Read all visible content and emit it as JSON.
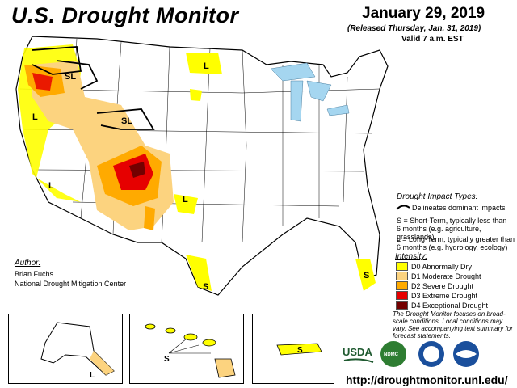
{
  "header": {
    "title": "U.S. Drought Monitor",
    "date": "January 29, 2019",
    "released": "(Released Thursday, Jan. 31, 2019)",
    "valid": "Valid 7 a.m. EST"
  },
  "impact_legend": {
    "title": "Drought Impact Types:",
    "delineates": "Delineates dominant impacts",
    "short_term": "S = Short-Term, typically less than",
    "short_term_2": "6 months (e.g. agriculture, grasslands)",
    "long_term": "L = Long-Term, typically greater than",
    "long_term_2": "6 months (e.g. hydrology, ecology)"
  },
  "intensity_legend": {
    "title": "Intensity:",
    "items": [
      {
        "label": "D0 Abnormally Dry",
        "color": "#ffff00"
      },
      {
        "label": "D1 Moderate Drought",
        "color": "#fcd37f"
      },
      {
        "label": "D2 Severe Drought",
        "color": "#ffaa00"
      },
      {
        "label": "D3 Extreme Drought",
        "color": "#e60000"
      },
      {
        "label": "D4 Exceptional Drought",
        "color": "#730000"
      }
    ]
  },
  "author": {
    "title": "Author:",
    "name": "Brian Fuchs",
    "org": "National Drought Mitigation Center"
  },
  "note": "The Drought Monitor focuses on broad-scale conditions. Local conditions may vary. See accompanying text summary for forecast statements.",
  "url": "http://droughtmonitor.unl.edu/",
  "map_labels": {
    "sl": "SL",
    "l": "L",
    "s": "S"
  },
  "logos": {
    "usda": "USDA",
    "ndmc": "NDMC"
  },
  "colors": {
    "d0": "#ffff00",
    "d1": "#fcd37f",
    "d2": "#ffaa00",
    "d3": "#e60000",
    "d4": "#730000",
    "water": "#a5d6f0",
    "usda_green": "#1f5a30",
    "noaa_blue": "#1a4f9c"
  }
}
